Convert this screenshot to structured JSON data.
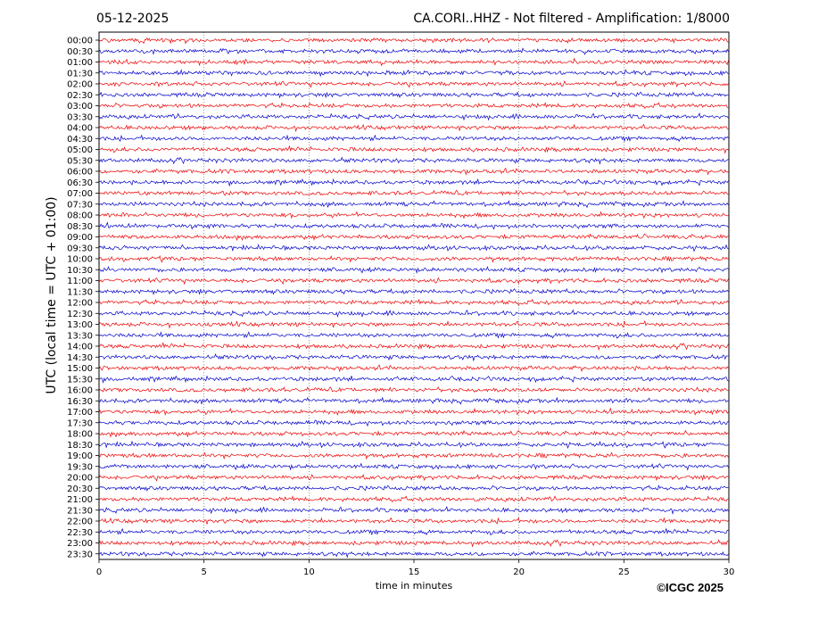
{
  "header": {
    "date": "05-12-2025",
    "station_title": "CA.CORI..HHZ - Not filtered - Amplification: 1/8000"
  },
  "credit": "©ICGC 2025",
  "colors": {
    "trace_a": "#ee0000",
    "trace_b": "#0000cc",
    "grid": "#555555",
    "frame": "#000000"
  },
  "chart_data": {
    "type": "line",
    "title": "CA.CORI..HHZ - Not filtered - Amplification: 1/8000",
    "xlabel": "time in minutes",
    "ylabel": "UTC (local time = UTC + 01:00)",
    "xlim": [
      0,
      30
    ],
    "x_ticks": [
      0,
      5,
      10,
      15,
      20,
      25,
      30
    ],
    "grid": "vertical dotted",
    "row_labels": [
      "00:00",
      "00:30",
      "01:00",
      "01:30",
      "02:00",
      "02:30",
      "03:00",
      "03:30",
      "04:00",
      "04:30",
      "05:00",
      "05:30",
      "06:00",
      "06:30",
      "07:00",
      "07:30",
      "08:00",
      "08:30",
      "09:00",
      "09:30",
      "10:00",
      "10:30",
      "11:00",
      "11:30",
      "12:00",
      "12:30",
      "13:00",
      "13:30",
      "14:00",
      "14:30",
      "15:00",
      "15:30",
      "16:00",
      "16:30",
      "17:00",
      "17:30",
      "18:00",
      "18:30",
      "19:00",
      "19:30",
      "20:00",
      "20:30",
      "21:00",
      "21:30",
      "22:00",
      "22:30",
      "23:00",
      "23:30"
    ],
    "trace_color_cycle": [
      "#ee0000",
      "#0000cc"
    ]
  }
}
